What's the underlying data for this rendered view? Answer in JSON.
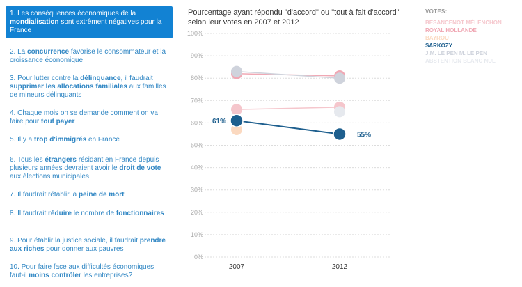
{
  "questions": [
    {
      "parts": [
        {
          "t": "1. Les conséquences économiques de la "
        },
        {
          "t": "mondialisation",
          "b": true
        },
        {
          "t": " sont extrêment négatives pour la France"
        }
      ],
      "active": true
    },
    {
      "parts": [
        {
          "t": "2. La "
        },
        {
          "t": "concurrence",
          "b": true
        },
        {
          "t": " favorise le consommateur et la croissance économique"
        }
      ]
    },
    {
      "parts": [
        {
          "t": "3. Pour lutter contre la "
        },
        {
          "t": "délinquance",
          "b": true
        },
        {
          "t": ", il faudrait "
        },
        {
          "t": "supprimer les allocations familiales",
          "b": true
        },
        {
          "t": " aux familles de mineurs délinquants"
        }
      ]
    },
    {
      "parts": [
        {
          "t": "4. Chaque mois on se demande comment on va faire pour "
        },
        {
          "t": "tout payer",
          "b": true
        }
      ]
    },
    {
      "parts": [
        {
          "t": "5. Il y a "
        },
        {
          "t": "trop d'immigrés",
          "b": true
        },
        {
          "t": " en France"
        }
      ]
    },
    {
      "parts": [
        {
          "t": "6. Tous les "
        },
        {
          "t": "étrangers",
          "b": true
        },
        {
          "t": " résidant en France depuis plusieurs années devraient avoir le "
        },
        {
          "t": "droit de vote",
          "b": true
        },
        {
          "t": " aux élections municipales"
        }
      ]
    },
    {
      "parts": [
        {
          "t": "7. Il faudrait rétablir la "
        },
        {
          "t": "peine de mort",
          "b": true
        }
      ]
    },
    {
      "parts": [
        {
          "t": "8. Il faudrait "
        },
        {
          "t": "réduire",
          "b": true
        },
        {
          "t": " le nombre de "
        },
        {
          "t": "fonctionnaires",
          "b": true
        }
      ]
    },
    {
      "parts": [
        {
          "t": "9. Pour établir la justice sociale, il faudrait "
        },
        {
          "t": "prendre aux riches",
          "b": true
        },
        {
          "t": " pour donner aux pauvres"
        }
      ]
    },
    {
      "parts": [
        {
          "t": "10. Pour faire face aux difficultés économiques, faut-il "
        },
        {
          "t": "moins contrôler",
          "b": true
        },
        {
          "t": " les entreprises?"
        }
      ]
    }
  ],
  "chart_data": {
    "type": "line",
    "title": "Pourcentage ayant répondu \"d'accord\" ou \"tout à fait d'accord\" selon leur votes en 2007 et 2012",
    "x": [
      "2007",
      "2012"
    ],
    "ylim": [
      0,
      100
    ],
    "yticks": [
      "0%",
      "10%",
      "20%",
      "30%",
      "40%",
      "50%",
      "60%",
      "70%",
      "80%",
      "90%",
      "100%"
    ],
    "grid": true,
    "legend_title": "VOTES:",
    "legend_position": "top-right",
    "series": [
      {
        "name": "BESANCENOT MÉLENCHON",
        "color": "#f5c6cc",
        "values": [
          66,
          67
        ]
      },
      {
        "name": "ROYAL HOLLANDE",
        "color": "#f0a8b4",
        "values": [
          82,
          81
        ]
      },
      {
        "name": "BAYROU",
        "color": "#fbd9c0",
        "values": [
          57,
          null
        ]
      },
      {
        "name": "SARKOZY",
        "color": "#1e5f8e",
        "values": [
          61,
          55
        ],
        "highlight": true,
        "labels": [
          "61%",
          "55%"
        ]
      },
      {
        "name": "J.M. LE PEN M. LE PEN",
        "color": "#cfd3dc",
        "values": [
          83,
          80
        ]
      },
      {
        "name": "ABSTENTION BLANC NUL",
        "color": "#e6e9ee",
        "values": [
          null,
          65
        ]
      }
    ]
  }
}
